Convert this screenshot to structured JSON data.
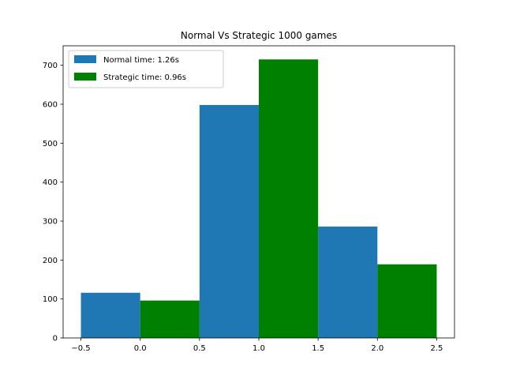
{
  "chart_data": {
    "type": "bar",
    "title": "Normal Vs Strategic 1000 games",
    "xlabel": "",
    "ylabel": "",
    "xlim": [
      -0.65,
      2.65
    ],
    "ylim": [
      0,
      750
    ],
    "x_ticks": [
      -0.5,
      0.0,
      0.5,
      1.0,
      1.5,
      2.0,
      2.5
    ],
    "x_tick_labels": [
      "−0.5",
      "0.0",
      "0.5",
      "1.0",
      "1.5",
      "2.0",
      "2.5"
    ],
    "y_ticks": [
      0,
      100,
      200,
      300,
      400,
      500,
      600,
      700
    ],
    "y_tick_labels": [
      "0",
      "100",
      "200",
      "300",
      "400",
      "500",
      "600",
      "700"
    ],
    "grid": false,
    "legend_position": "upper-left",
    "series": [
      {
        "name": "Normal time: 1.26s",
        "color": "#1f77b4",
        "bars": [
          {
            "x_start": -0.5,
            "x_end": 0.0,
            "value": 116
          },
          {
            "x_start": 0.5,
            "x_end": 1.0,
            "value": 598
          },
          {
            "x_start": 1.5,
            "x_end": 2.0,
            "value": 286
          }
        ]
      },
      {
        "name": "Strategic time: 0.96s",
        "color": "#008000",
        "bars": [
          {
            "x_start": 0.0,
            "x_end": 0.5,
            "value": 96
          },
          {
            "x_start": 1.0,
            "x_end": 1.5,
            "value": 715
          },
          {
            "x_start": 2.0,
            "x_end": 2.5,
            "value": 189
          }
        ]
      }
    ]
  }
}
